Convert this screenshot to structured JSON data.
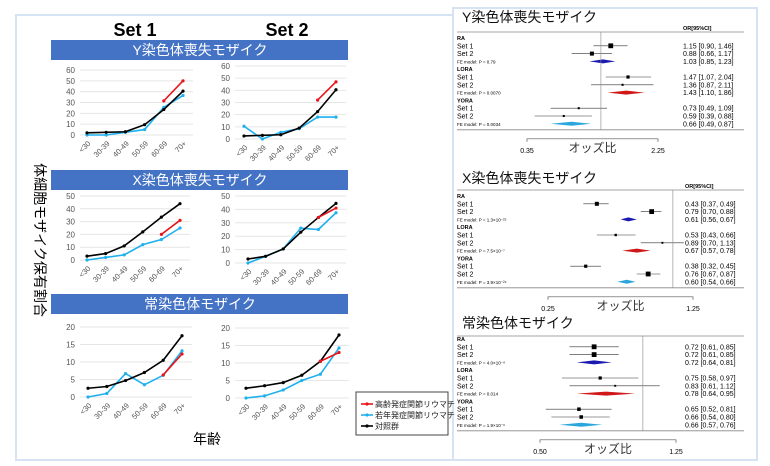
{
  "left_panel": {
    "set1_label": "Set 1",
    "set2_label": "Set 2",
    "y_axis_label": "体細胞モザイク保有割合",
    "x_axis_label": "年齢",
    "legend": [
      {
        "label": "高齢発症関節リウマチ",
        "color": "#e8141c"
      },
      {
        "label": "若年発症関節リウマチ",
        "color": "#1fb0ee"
      },
      {
        "label": "対照群",
        "color": "#000000"
      }
    ]
  },
  "chart_data": [
    {
      "type": "line",
      "title": "Y染色体喪失モザイク",
      "set": "Set 1",
      "categories": [
        "<30",
        "30-39",
        "40-49",
        "50-59",
        "60-69",
        "70+"
      ],
      "ylim": [
        0,
        60
      ],
      "yticks": [
        "0",
        "10",
        "20",
        "30",
        "40",
        "50",
        "60"
      ],
      "series": [
        {
          "name": "高齢発症関節リウマチ",
          "values": [
            null,
            null,
            null,
            null,
            31.5,
            50
          ]
        },
        {
          "name": "若年発症関節リウマチ",
          "values": [
            0,
            0,
            2.5,
            5,
            25.5,
            36.5
          ]
        },
        {
          "name": "対照群",
          "values": [
            2,
            2.5,
            3,
            9.5,
            23.5,
            40.5
          ]
        }
      ]
    },
    {
      "type": "line",
      "title": "Y染色体喪失モザイク",
      "set": "Set 2",
      "categories": [
        "<30",
        "30-39",
        "40-49",
        "50-59",
        "60-69",
        "70+"
      ],
      "ylim": [
        0,
        60
      ],
      "yticks": [
        "0",
        "10",
        "20",
        "30",
        "40",
        "50",
        "60"
      ],
      "series": [
        {
          "name": "高齢発症関節リウマチ",
          "values": [
            null,
            null,
            null,
            null,
            32,
            47
          ]
        },
        {
          "name": "若年発症関節リウマチ",
          "values": [
            10.5,
            0,
            5.5,
            8.5,
            18,
            18
          ]
        },
        {
          "name": "対照群",
          "values": [
            2.5,
            3,
            3.5,
            9,
            22.5,
            40.5
          ]
        }
      ]
    },
    {
      "type": "line",
      "title": "X染色体喪失モザイク",
      "set": "Set 1",
      "categories": [
        "<30",
        "30-39",
        "40-49",
        "50-59",
        "60-69",
        "70+"
      ],
      "ylim": [
        0,
        50
      ],
      "yticks": [
        "0",
        "10",
        "20",
        "30",
        "40",
        "50"
      ],
      "series": [
        {
          "name": "高齢発症関節リウマチ",
          "values": [
            null,
            null,
            null,
            null,
            20,
            31
          ]
        },
        {
          "name": "若年発症関節リウマチ",
          "values": [
            0,
            2,
            4,
            12,
            16,
            25
          ]
        },
        {
          "name": "対照群",
          "values": [
            3,
            5,
            11,
            22,
            33.5,
            44
          ]
        }
      ]
    },
    {
      "type": "line",
      "title": "X染色体喪失モザイク",
      "set": "Set 2",
      "categories": [
        "<30",
        "30-39",
        "40-49",
        "50-59",
        "60-69",
        "70+"
      ],
      "ylim": [
        0,
        50
      ],
      "yticks": [
        "0",
        "10",
        "20",
        "30",
        "40",
        "50"
      ],
      "series": [
        {
          "name": "高齢発症関節リウマチ",
          "values": [
            null,
            null,
            null,
            null,
            34,
            41
          ]
        },
        {
          "name": "若年発症関節リウマチ",
          "values": [
            0,
            5,
            10.5,
            26,
            25,
            37.5
          ]
        },
        {
          "name": "対照群",
          "values": [
            3,
            5,
            10.5,
            23,
            34,
            44.5
          ]
        }
      ]
    },
    {
      "type": "line",
      "title": "常染色体モザイク",
      "set": "Set 1",
      "categories": [
        "<30",
        "30-39",
        "40-49",
        "50-59",
        "60-69",
        "70+"
      ],
      "ylim": [
        0,
        20
      ],
      "yticks": [
        "0",
        "5",
        "10",
        "15",
        "20"
      ],
      "series": [
        {
          "name": "高齢発症関節リウマチ",
          "values": [
            null,
            null,
            null,
            null,
            6.3,
            12.3
          ]
        },
        {
          "name": "若年発症関節リウマチ",
          "values": [
            0,
            1,
            6.7,
            3.5,
            6.2,
            13.2
          ]
        },
        {
          "name": "対照群",
          "values": [
            2.5,
            3,
            4.7,
            7,
            10.5,
            17.5
          ]
        }
      ]
    },
    {
      "type": "line",
      "title": "常染色体モザイク",
      "set": "Set 2",
      "categories": [
        "<30",
        "30-39",
        "40-49",
        "50-59",
        "60-69",
        "70+"
      ],
      "ylim": [
        0,
        20
      ],
      "yticks": [
        "0",
        "5",
        "10",
        "15",
        "20"
      ],
      "series": [
        {
          "name": "高齢発症関節リウマチ",
          "values": [
            null,
            null,
            null,
            null,
            10.5,
            13
          ]
        },
        {
          "name": "若年発症関節リウマチ",
          "values": [
            0,
            0.6,
            2.3,
            5,
            6.8,
            14.3
          ]
        },
        {
          "name": "対照群",
          "values": [
            2.8,
            3.5,
            4.4,
            6.5,
            10.5,
            18
          ]
        }
      ]
    }
  ],
  "forest_plots": [
    {
      "title": "Y染色体喪失モザイク",
      "header": "OR[95%CI]",
      "xlabel": "オッズ比",
      "xlim": [
        0.35,
        2.25
      ],
      "ticks": [
        "0.35",
        "2.25"
      ],
      "groups": [
        {
          "name": "RA",
          "color": "#1a1ab0",
          "rows": [
            {
              "label": "Set 1",
              "or": 1.15,
              "lo": 0.9,
              "hi": 1.46,
              "w": 3,
              "text": "1.15 [0.90, 1.46]"
            },
            {
              "label": "Set 2",
              "or": 0.88,
              "lo": 0.66,
              "hi": 1.17,
              "w": 2.5,
              "text": "0.88 [0.66, 1.17]"
            }
          ],
          "fe": {
            "label": "FE model: P = 0.79",
            "or": 1.03,
            "lo": 0.85,
            "hi": 1.23,
            "text": "1.03 [0.85, 1.23]"
          }
        },
        {
          "name": "LORA",
          "color": "#d01818",
          "rows": [
            {
              "label": "Set 1",
              "or": 1.47,
              "lo": 1.07,
              "hi": 2.04,
              "w": 2,
              "text": "1.47 [1.07, 2.04]"
            },
            {
              "label": "Set 2",
              "or": 1.36,
              "lo": 0.87,
              "hi": 2.11,
              "w": 1.3,
              "text": "1.36 [0.87, 2.11]"
            }
          ],
          "fe": {
            "label": "FE model: P = 0.0070",
            "or": 1.43,
            "lo": 1.1,
            "hi": 1.86,
            "text": "1.43 [1.10, 1.86]"
          }
        },
        {
          "name": "YORA",
          "color": "#2aa6dc",
          "rows": [
            {
              "label": "Set 1",
              "or": 0.73,
              "lo": 0.49,
              "hi": 1.09,
              "w": 1.3,
              "text": "0.73 [0.49, 1.09]"
            },
            {
              "label": "Set 2",
              "or": 0.59,
              "lo": 0.39,
              "hi": 0.88,
              "w": 1.3,
              "text": "0.59 [0.39, 0.88]"
            }
          ],
          "fe": {
            "label": "FE model: P = 0.0034",
            "or": 0.66,
            "lo": 0.49,
            "hi": 0.87,
            "text": "0.66 [0.49, 0.87]"
          }
        }
      ]
    },
    {
      "title": "X染色体喪失モザイク",
      "header": "OR[95%CI]",
      "xlabel": "オッズ比",
      "xlim": [
        0.25,
        1.25
      ],
      "ticks": [
        "0.25",
        "1.25"
      ],
      "groups": [
        {
          "name": "RA",
          "color": "#1a1ab0",
          "rows": [
            {
              "label": "Set 1",
              "or": 0.43,
              "lo": 0.37,
              "hi": 0.49,
              "w": 2.5,
              "text": "0.43 [0.37, 0.49]"
            },
            {
              "label": "Set 2",
              "or": 0.79,
              "lo": 0.7,
              "hi": 0.88,
              "w": 3,
              "text": "0.79 [0.70, 0.88]"
            }
          ],
          "fe": {
            "label": "FE model: P = 1.3×10⁻²⁵",
            "or": 0.61,
            "lo": 0.56,
            "hi": 0.67,
            "text": "0.61 [0.56, 0.67]"
          }
        },
        {
          "name": "LORA",
          "color": "#d01818",
          "rows": [
            {
              "label": "Set 1",
              "or": 0.53,
              "lo": 0.43,
              "hi": 0.66,
              "w": 1.5,
              "text": "0.53 [0.43, 0.66]"
            },
            {
              "label": "Set 2",
              "or": 0.89,
              "lo": 0.7,
              "hi": 1.13,
              "w": 1.2,
              "text": "0.89 [0.70, 1.13]"
            }
          ],
          "fe": {
            "label": "FE model: P = 7.5×10⁻⁷",
            "or": 0.67,
            "lo": 0.57,
            "hi": 0.78,
            "text": "0.67 [0.57, 0.78]"
          }
        },
        {
          "name": "YORA",
          "color": "#2aa6dc",
          "rows": [
            {
              "label": "Set 1",
              "or": 0.38,
              "lo": 0.32,
              "hi": 0.45,
              "w": 2,
              "text": "0.38 [0.32, 0.45]"
            },
            {
              "label": "Set 2",
              "or": 0.76,
              "lo": 0.67,
              "hi": 0.87,
              "w": 3,
              "text": "0.76 [0.67, 0.87]"
            }
          ],
          "fe": {
            "label": "FE model: P = 3.9×10⁻²⁴",
            "or": 0.6,
            "lo": 0.54,
            "hi": 0.66,
            "text": "0.60 [0.54, 0.66]"
          }
        }
      ]
    },
    {
      "title": "常染色体モザイク",
      "header": "",
      "xlabel": "オッズ比",
      "xlim": [
        0.5,
        1.25
      ],
      "ticks": [
        "0.50",
        "1.25"
      ],
      "groups": [
        {
          "name": "RA",
          "color": "#1a1ab0",
          "rows": [
            {
              "label": "Set 1",
              "or": 0.72,
              "lo": 0.61,
              "hi": 0.85,
              "w": 3,
              "text": "0.72 [0.61, 0.85]"
            },
            {
              "label": "Set 2",
              "or": 0.72,
              "lo": 0.61,
              "hi": 0.85,
              "w": 3,
              "text": "0.72 [0.61, 0.85]"
            }
          ],
          "fe": {
            "label": "FE model: P = 4.0×10⁻⁸",
            "or": 0.72,
            "lo": 0.64,
            "hi": 0.81,
            "text": "0.72 [0.64, 0.81]"
          }
        },
        {
          "name": "LORA",
          "color": "#d01818",
          "rows": [
            {
              "label": "Set 1",
              "or": 0.75,
              "lo": 0.58,
              "hi": 0.97,
              "w": 2,
              "text": "0.75 [0.58, 0.97]"
            },
            {
              "label": "Set 2",
              "or": 0.83,
              "lo": 0.61,
              "hi": 1.12,
              "w": 1.2,
              "text": "0.83 [0.61, 1.12]"
            }
          ],
          "fe": {
            "label": "FE model: P = 0.014",
            "or": 0.78,
            "lo": 0.64,
            "hi": 0.95,
            "text": "0.78 [0.64, 0.95]"
          }
        },
        {
          "name": "YORA",
          "color": "#2aa6dc",
          "rows": [
            {
              "label": "Set 1",
              "or": 0.65,
              "lo": 0.52,
              "hi": 0.81,
              "w": 2.2,
              "text": "0.65 [0.52, 0.81]"
            },
            {
              "label": "Set 2",
              "or": 0.66,
              "lo": 0.54,
              "hi": 0.8,
              "w": 2.2,
              "text": "0.66 [0.54, 0.80]"
            }
          ],
          "fe": {
            "label": "FE model: P = 1.9×10⁻⁶",
            "or": 0.66,
            "lo": 0.57,
            "hi": 0.76,
            "text": "0.66 [0.57, 0.76]"
          }
        }
      ]
    }
  ]
}
